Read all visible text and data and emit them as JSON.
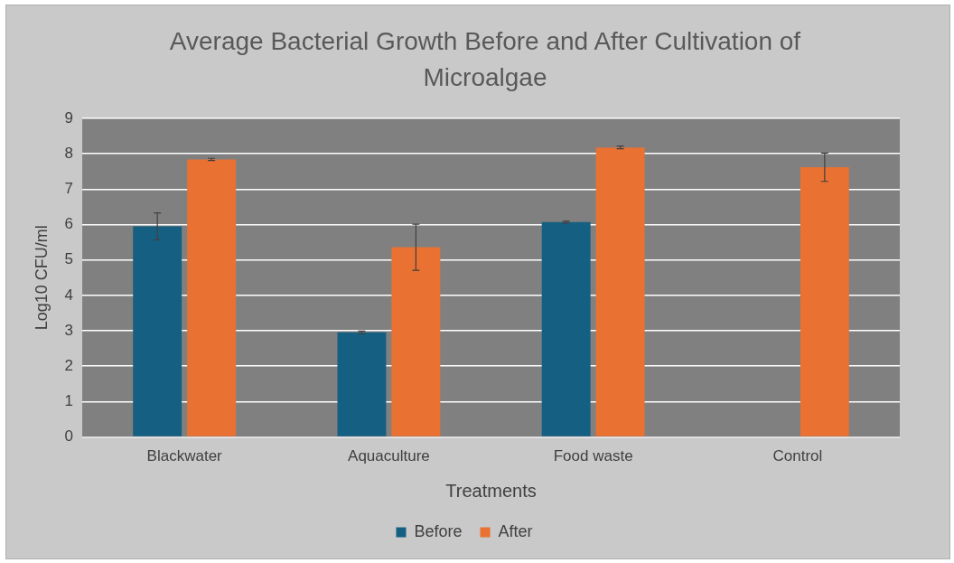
{
  "chart_data": {
    "type": "bar",
    "title": "Average Bacterial Growth Before and After Cultivation of Microalgae",
    "xlabel": "Treatments",
    "ylabel": "Log10 CFU/ml",
    "categories": [
      "Blackwater",
      "Aquaculture",
      "Food waste",
      "Control"
    ],
    "series": [
      {
        "name": "Before",
        "color": "#156082",
        "values": [
          5.95,
          2.96,
          6.07,
          null
        ],
        "errors": [
          0.38,
          0.03,
          0.03,
          null
        ]
      },
      {
        "name": "After",
        "color": "#e97132",
        "values": [
          7.84,
          5.36,
          8.18,
          7.62
        ],
        "errors": [
          0.03,
          0.65,
          0.04,
          0.4
        ]
      }
    ],
    "ylim": [
      0,
      9
    ],
    "yticks": [
      0,
      1,
      2,
      3,
      4,
      5,
      6,
      7,
      8,
      9
    ],
    "grid": "y",
    "legend": "bottom"
  }
}
